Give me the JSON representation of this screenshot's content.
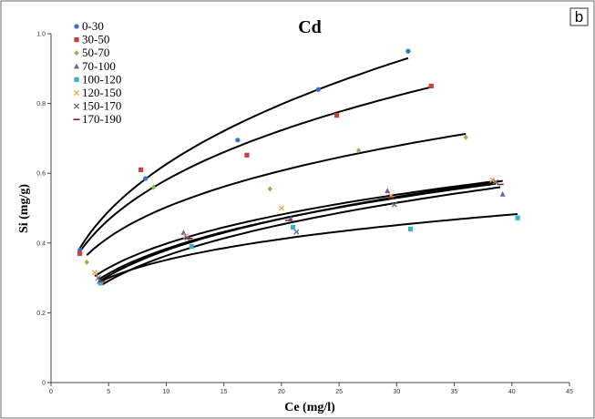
{
  "panel_label": "b",
  "chart_data": {
    "type": "scatter",
    "title": "Cd",
    "xlabel": "Ce (mg/l)",
    "ylabel": "Si (mg/g)",
    "xlim": [
      0,
      45
    ],
    "ylim": [
      0,
      1.0
    ],
    "xticks": [
      "0",
      "5",
      "10",
      "15",
      "20",
      "25",
      "30",
      "35",
      "40",
      "45"
    ],
    "yticks": [
      "0",
      "0.2",
      "0.4",
      "0.6",
      "0.8",
      "1.0"
    ],
    "legend_position": "top-left",
    "grid": false,
    "series": [
      {
        "name": "0-30",
        "color": "#3a6fc4",
        "marker": "circle",
        "points": [
          [
            2.5,
            0.38
          ],
          [
            8.2,
            0.585
          ],
          [
            16.2,
            0.695
          ],
          [
            23.2,
            0.84
          ],
          [
            31.0,
            0.95
          ]
        ],
        "curve": [
          [
            2.5,
            0.385
          ],
          [
            31.0,
            0.93
          ]
        ]
      },
      {
        "name": "30-50",
        "color": "#c8413e",
        "marker": "square",
        "points": [
          [
            2.5,
            0.37
          ],
          [
            7.8,
            0.61
          ],
          [
            17.0,
            0.652
          ],
          [
            24.8,
            0.766
          ],
          [
            33.0,
            0.85
          ]
        ],
        "curve": [
          [
            2.5,
            0.375
          ],
          [
            33.0,
            0.847
          ]
        ]
      },
      {
        "name": "50-70",
        "color": "#8cb54a",
        "marker": "diamond",
        "points": [
          [
            3.1,
            0.345
          ],
          [
            8.9,
            0.56
          ],
          [
            19.0,
            0.555
          ],
          [
            26.7,
            0.665
          ],
          [
            36.0,
            0.703
          ]
        ],
        "curve": [
          [
            3.1,
            0.365
          ],
          [
            36.0,
            0.713
          ]
        ]
      },
      {
        "name": "70-100",
        "color": "#7b5ba8",
        "marker": "triangle",
        "points": [
          [
            4.2,
            0.29
          ],
          [
            11.5,
            0.43
          ],
          [
            20.8,
            0.47
          ],
          [
            29.2,
            0.55
          ],
          [
            39.2,
            0.54
          ]
        ],
        "curve": [
          [
            4.2,
            0.29
          ],
          [
            39.2,
            0.578
          ]
        ]
      },
      {
        "name": "100-120",
        "color": "#3bb0cc",
        "marker": "square",
        "points": [
          [
            4.3,
            0.285
          ],
          [
            12.2,
            0.39
          ],
          [
            21.0,
            0.445
          ],
          [
            31.2,
            0.44
          ],
          [
            40.5,
            0.472
          ]
        ],
        "curve": [
          [
            4.3,
            0.29
          ],
          [
            40.5,
            0.483
          ]
        ]
      },
      {
        "name": "120-150",
        "color": "#f2a23c",
        "marker": "x",
        "points": [
          [
            3.8,
            0.315
          ],
          [
            11.7,
            0.42
          ],
          [
            20.0,
            0.5
          ],
          [
            29.5,
            0.535
          ],
          [
            38.3,
            0.58
          ]
        ],
        "curve": [
          [
            3.8,
            0.305
          ],
          [
            38.3,
            0.576
          ]
        ]
      },
      {
        "name": "150-170",
        "color": "#5a6c9c",
        "marker": "x",
        "points": [
          [
            4.1,
            0.3
          ],
          [
            11.8,
            0.415
          ],
          [
            21.3,
            0.432
          ],
          [
            29.8,
            0.51
          ],
          [
            38.6,
            0.575
          ]
        ],
        "curve": [
          [
            4.1,
            0.295
          ],
          [
            38.6,
            0.57
          ]
        ]
      },
      {
        "name": "170-190",
        "color": "#8b2424",
        "marker": "dash",
        "points": [
          [
            4.4,
            0.29
          ],
          [
            12.0,
            0.413
          ],
          [
            20.6,
            0.465
          ],
          [
            29.5,
            0.53
          ],
          [
            39.0,
            0.568
          ]
        ],
        "curve": [
          [
            4.4,
            0.28
          ],
          [
            39.0,
            0.56
          ]
        ]
      }
    ]
  }
}
